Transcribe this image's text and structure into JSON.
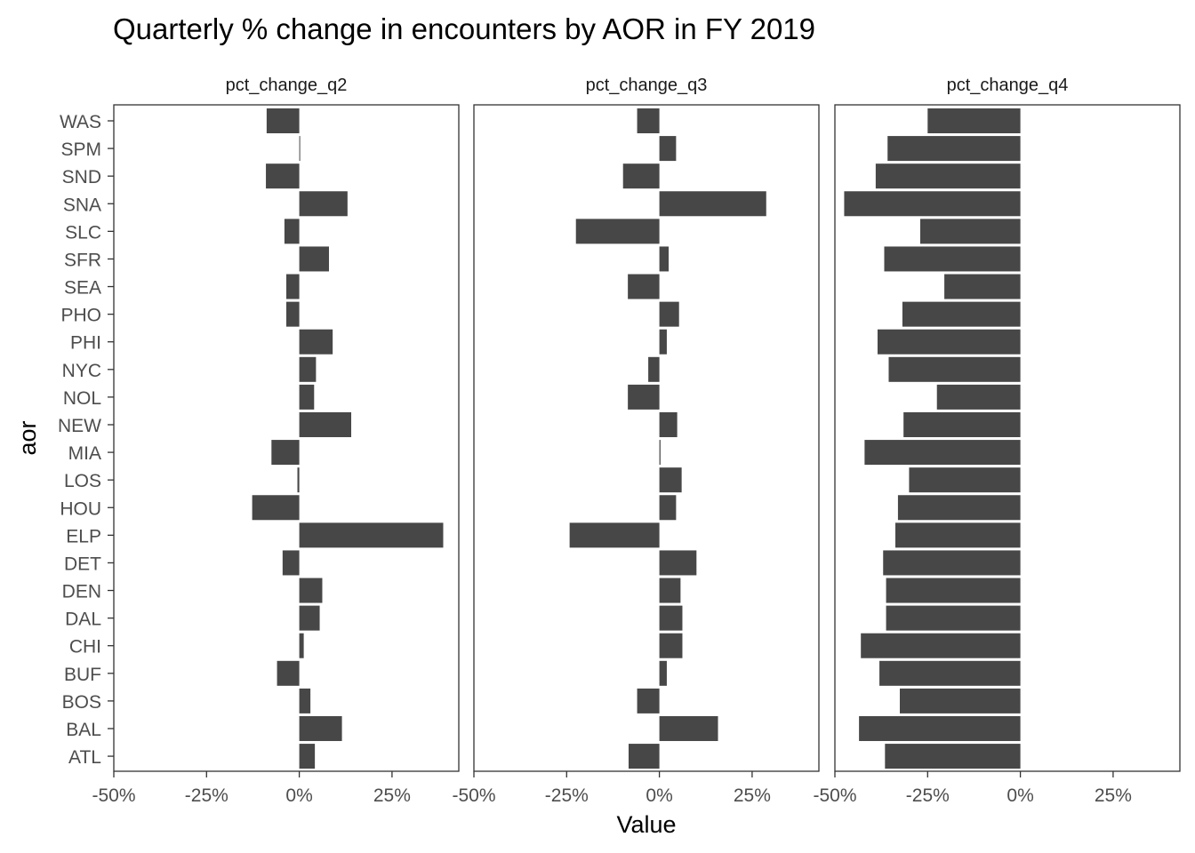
{
  "chart_data": {
    "type": "bar",
    "orientation": "horizontal",
    "title": "Quarterly % change in encounters by AOR in FY 2019",
    "xlabel": "Value",
    "ylabel": "aor",
    "xlim": [
      -50,
      43
    ],
    "x_ticks": [
      -50,
      -25,
      0,
      25
    ],
    "x_tick_labels": [
      "-50%",
      "-25%",
      "0%",
      "25%"
    ],
    "grid": false,
    "legend": "none",
    "bar_color": "#474747",
    "categories": [
      "WAS",
      "SPM",
      "SND",
      "SNA",
      "SLC",
      "SFR",
      "SEA",
      "PHO",
      "PHI",
      "NYC",
      "NOL",
      "NEW",
      "MIA",
      "LOS",
      "HOU",
      "ELP",
      "DET",
      "DEN",
      "DAL",
      "CHI",
      "BUF",
      "BOS",
      "BAL",
      "ATL"
    ],
    "facets": [
      {
        "name": "pct_change_q2",
        "values": [
          -8.8,
          0.2,
          -9.0,
          13.0,
          -4.0,
          8.0,
          -3.5,
          -3.5,
          9.0,
          4.5,
          4.0,
          14.0,
          -7.5,
          -0.5,
          -12.7,
          38.8,
          -4.5,
          6.2,
          5.5,
          1.2,
          -6.0,
          3.0,
          11.5,
          4.2
        ]
      },
      {
        "name": "pct_change_q3",
        "values": [
          -6.0,
          4.5,
          -9.8,
          28.8,
          -22.5,
          2.5,
          -8.5,
          5.3,
          2.0,
          -3.0,
          -8.5,
          4.8,
          0.3,
          6.0,
          4.5,
          -24.2,
          10.0,
          5.7,
          6.2,
          6.2,
          2.0,
          -6.0,
          15.8,
          -8.3
        ]
      },
      {
        "name": "pct_change_q4",
        "values": [
          -25.0,
          -35.8,
          -39.0,
          -47.5,
          -27.0,
          -36.7,
          -20.5,
          -31.8,
          -38.5,
          -35.5,
          -22.5,
          -31.5,
          -42.0,
          -30.0,
          -33.0,
          -33.7,
          -37.0,
          -36.2,
          -36.2,
          -43.0,
          -38.0,
          -32.5,
          -43.5,
          -36.5
        ]
      }
    ]
  }
}
